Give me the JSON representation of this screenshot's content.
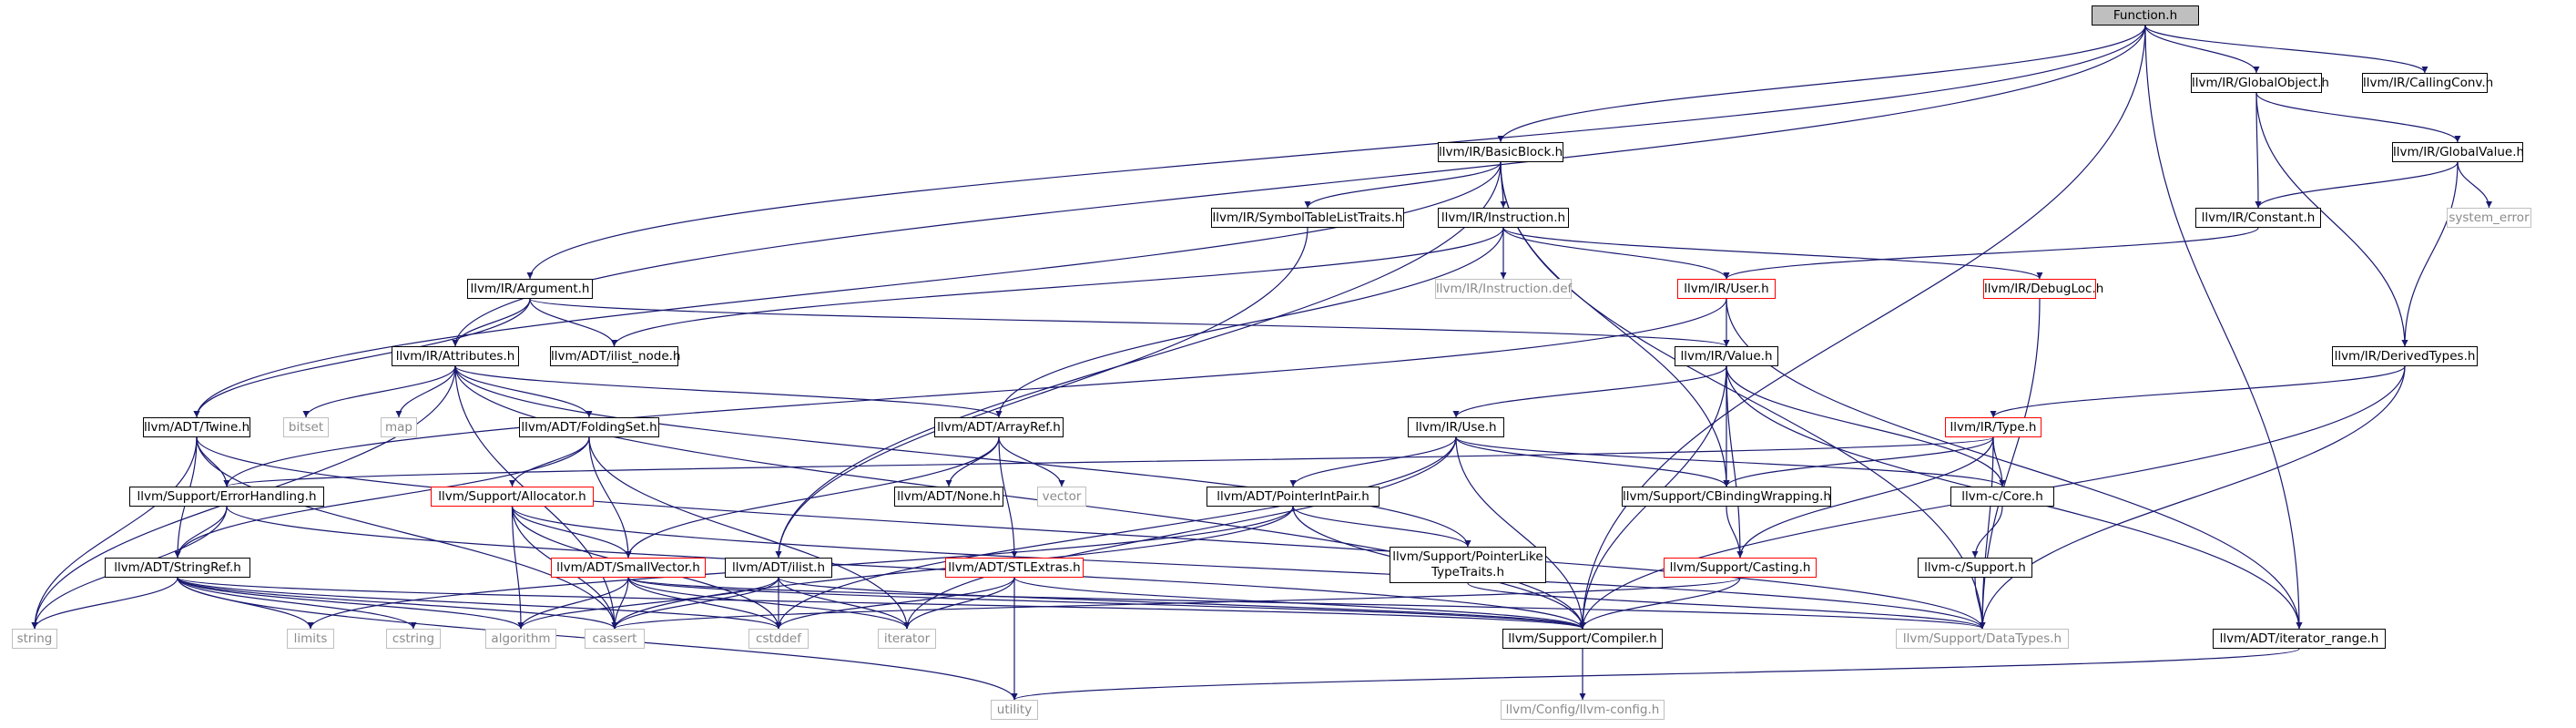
{
  "diagram": {
    "type": "include-dependency-graph",
    "colors": {
      "edge": "#191970",
      "node_border": "#000000",
      "truncated_border": "#ff0000",
      "system_border": "#bfbfbf",
      "system_text": "#8a8a8a",
      "root_fill": "#bfbfbf"
    },
    "nodes": {
      "function_h": "Function.h",
      "globalobject": "llvm/IR/GlobalObject.h",
      "callingconv": "llvm/IR/CallingConv.h",
      "basicblock": "llvm/IR/BasicBlock.h",
      "globalvalue": "llvm/IR/GlobalValue.h",
      "symtab": "llvm/IR/SymbolTableListTraits.h",
      "instruction": "llvm/IR/Instruction.h",
      "constant": "llvm/IR/Constant.h",
      "system_error": "system_error",
      "argument": "llvm/IR/Argument.h",
      "instruction_def": "llvm/IR/Instruction.def",
      "user": "llvm/IR/User.h",
      "debugloc": "llvm/IR/DebugLoc.h",
      "attributes": "llvm/IR/Attributes.h",
      "ilist_node": "llvm/ADT/ilist_node.h",
      "value": "llvm/IR/Value.h",
      "derivedtypes": "llvm/IR/DerivedTypes.h",
      "bitset": "bitset",
      "map": "map",
      "twine": "llvm/ADT/Twine.h",
      "foldingset": "llvm/ADT/FoldingSet.h",
      "arrayref": "llvm/ADT/ArrayRef.h",
      "use": "llvm/IR/Use.h",
      "type": "llvm/IR/Type.h",
      "vector": "vector",
      "errorhandling": "llvm/Support/ErrorHandling.h",
      "allocator": "llvm/Support/Allocator.h",
      "none": "llvm/ADT/None.h",
      "pointerintpair": "llvm/ADT/PointerIntPair.h",
      "cbinding": "llvm/Support/CBindingWrapping.h",
      "core": "llvm-c/Core.h",
      "stringref": "llvm/ADT/StringRef.h",
      "smallvector": "llvm/ADT/SmallVector.h",
      "ilist": "llvm/ADT/ilist.h",
      "stlextras": "llvm/ADT/STLExtras.h",
      "pointerlike": "llvm/Support/PointerLike\nTypeTraits.h",
      "casting": "llvm/Support/Casting.h",
      "support": "llvm-c/Support.h",
      "string": "string",
      "limits": "limits",
      "cstring": "cstring",
      "algorithm": "algorithm",
      "cassert": "cassert",
      "cstddef": "cstddef",
      "iterator": "iterator",
      "compiler": "llvm/Support/Compiler.h",
      "datatypes": "llvm/Support/DataTypes.h",
      "iterator_range": "llvm/ADT/iterator_range.h",
      "utility": "utility",
      "llvmconfig": "llvm/Config/llvm-config.h"
    },
    "edges": [
      [
        "function_h",
        "globalobject"
      ],
      [
        "function_h",
        "callingconv"
      ],
      [
        "function_h",
        "basicblock"
      ],
      [
        "function_h",
        "argument"
      ],
      [
        "function_h",
        "attributes"
      ],
      [
        "function_h",
        "compiler"
      ],
      [
        "function_h",
        "iterator_range"
      ],
      [
        "globalobject",
        "globalvalue"
      ],
      [
        "globalobject",
        "constant"
      ],
      [
        "globalobject",
        "derivedtypes"
      ],
      [
        "globalvalue",
        "constant"
      ],
      [
        "globalvalue",
        "system_error"
      ],
      [
        "globalvalue",
        "derivedtypes"
      ],
      [
        "constant",
        "user"
      ],
      [
        "basicblock",
        "symtab"
      ],
      [
        "basicblock",
        "instruction"
      ],
      [
        "basicblock",
        "twine"
      ],
      [
        "basicblock",
        "ilist"
      ],
      [
        "basicblock",
        "cbinding"
      ],
      [
        "basicblock",
        "datatypes"
      ],
      [
        "symtab",
        "ilist"
      ],
      [
        "instruction",
        "ilist_node"
      ],
      [
        "instruction",
        "instruction_def"
      ],
      [
        "instruction",
        "user"
      ],
      [
        "instruction",
        "debugloc"
      ],
      [
        "instruction",
        "arrayref"
      ],
      [
        "argument",
        "attributes"
      ],
      [
        "argument",
        "ilist_node"
      ],
      [
        "argument",
        "value"
      ],
      [
        "argument",
        "twine"
      ],
      [
        "user",
        "value"
      ],
      [
        "user",
        "errorhandling"
      ],
      [
        "user",
        "iterator_range"
      ],
      [
        "debugloc",
        "datatypes"
      ],
      [
        "derivedtypes",
        "type"
      ],
      [
        "derivedtypes",
        "compiler"
      ],
      [
        "derivedtypes",
        "datatypes"
      ],
      [
        "attributes",
        "bitset"
      ],
      [
        "attributes",
        "map"
      ],
      [
        "attributes",
        "string"
      ],
      [
        "attributes",
        "foldingset"
      ],
      [
        "attributes",
        "arrayref"
      ],
      [
        "attributes",
        "cassert"
      ],
      [
        "attributes",
        "compiler"
      ],
      [
        "attributes",
        "pointerlike"
      ],
      [
        "value",
        "use"
      ],
      [
        "value",
        "cbinding"
      ],
      [
        "value",
        "casting"
      ],
      [
        "value",
        "core"
      ],
      [
        "value",
        "compiler"
      ],
      [
        "value",
        "iterator_range"
      ],
      [
        "twine",
        "errorhandling"
      ],
      [
        "twine",
        "stringref"
      ],
      [
        "twine",
        "string"
      ],
      [
        "twine",
        "cassert"
      ],
      [
        "twine",
        "datatypes"
      ],
      [
        "foldingset",
        "allocator"
      ],
      [
        "foldingset",
        "smallvector"
      ],
      [
        "foldingset",
        "stringref"
      ],
      [
        "foldingset",
        "iterator"
      ],
      [
        "arrayref",
        "none"
      ],
      [
        "arrayref",
        "vector"
      ],
      [
        "arrayref",
        "smallvector"
      ],
      [
        "arrayref",
        "stlextras"
      ],
      [
        "use",
        "pointerintpair"
      ],
      [
        "use",
        "cbinding"
      ],
      [
        "use",
        "core"
      ],
      [
        "use",
        "compiler"
      ],
      [
        "use",
        "cstddef"
      ],
      [
        "use",
        "iterator"
      ],
      [
        "type",
        "errorhandling"
      ],
      [
        "type",
        "cbinding"
      ],
      [
        "type",
        "core"
      ],
      [
        "type",
        "casting"
      ],
      [
        "type",
        "datatypes"
      ],
      [
        "errorhandling",
        "stringref"
      ],
      [
        "errorhandling",
        "compiler"
      ],
      [
        "errorhandling",
        "string"
      ],
      [
        "allocator",
        "smallvector"
      ],
      [
        "allocator",
        "cassert"
      ],
      [
        "allocator",
        "cstddef"
      ],
      [
        "allocator",
        "algorithm"
      ],
      [
        "allocator",
        "datatypes"
      ],
      [
        "pointerintpair",
        "pointerlike"
      ],
      [
        "pointerintpair",
        "compiler"
      ],
      [
        "pointerintpair",
        "cassert"
      ],
      [
        "pointerintpair",
        "limits"
      ],
      [
        "cbinding",
        "casting"
      ],
      [
        "core",
        "support"
      ],
      [
        "stringref",
        "algorithm"
      ],
      [
        "stringref",
        "cassert"
      ],
      [
        "stringref",
        "cstring"
      ],
      [
        "stringref",
        "limits"
      ],
      [
        "stringref",
        "string"
      ],
      [
        "stringref",
        "utility"
      ],
      [
        "stringref",
        "compiler"
      ],
      [
        "stringref",
        "cstddef"
      ],
      [
        "smallvector",
        "algorithm"
      ],
      [
        "smallvector",
        "cassert"
      ],
      [
        "smallvector",
        "cstddef"
      ],
      [
        "smallvector",
        "iterator"
      ],
      [
        "smallvector",
        "compiler"
      ],
      [
        "smallvector",
        "datatypes"
      ],
      [
        "ilist",
        "algorithm"
      ],
      [
        "ilist",
        "cassert"
      ],
      [
        "ilist",
        "cstddef"
      ],
      [
        "ilist",
        "iterator"
      ],
      [
        "ilist",
        "compiler"
      ],
      [
        "stlextras",
        "cstddef"
      ],
      [
        "stlextras",
        "iterator"
      ],
      [
        "stlextras",
        "utility"
      ],
      [
        "stlextras",
        "compiler"
      ],
      [
        "pointerlike",
        "datatypes"
      ],
      [
        "casting",
        "compiler"
      ],
      [
        "casting",
        "cassert"
      ],
      [
        "support",
        "datatypes"
      ],
      [
        "compiler",
        "llvmconfig"
      ],
      [
        "iterator_range",
        "utility"
      ]
    ]
  }
}
